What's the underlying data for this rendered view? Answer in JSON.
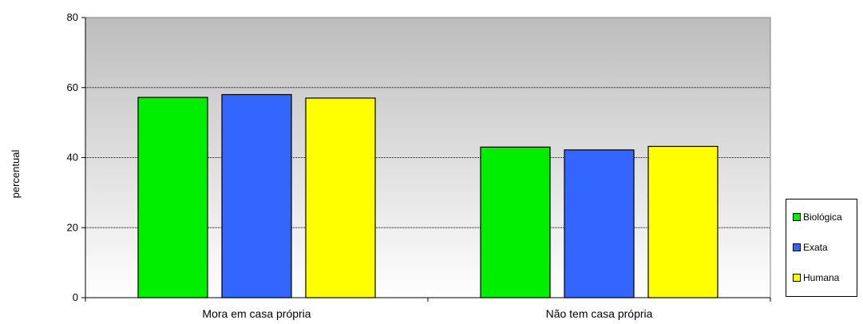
{
  "chart_data": {
    "type": "bar",
    "categories": [
      "Mora em casa própria",
      "Não tem casa própria"
    ],
    "series": [
      {
        "name": "Biológica",
        "color": "#00ee00",
        "values": [
          57.2,
          43.0
        ]
      },
      {
        "name": "Exata",
        "color": "#3366ff",
        "values": [
          58.0,
          42.2
        ]
      },
      {
        "name": "Humana",
        "color": "#ffff00",
        "values": [
          57.0,
          43.2
        ]
      }
    ],
    "title": "",
    "xlabel": "",
    "ylabel": "percentual",
    "ylim": [
      0,
      80
    ],
    "yticks": [
      0,
      20,
      40,
      60,
      80
    ],
    "grid": "horizontal dotted",
    "legend_position": "right",
    "plot_background": "gradient gray to white"
  }
}
